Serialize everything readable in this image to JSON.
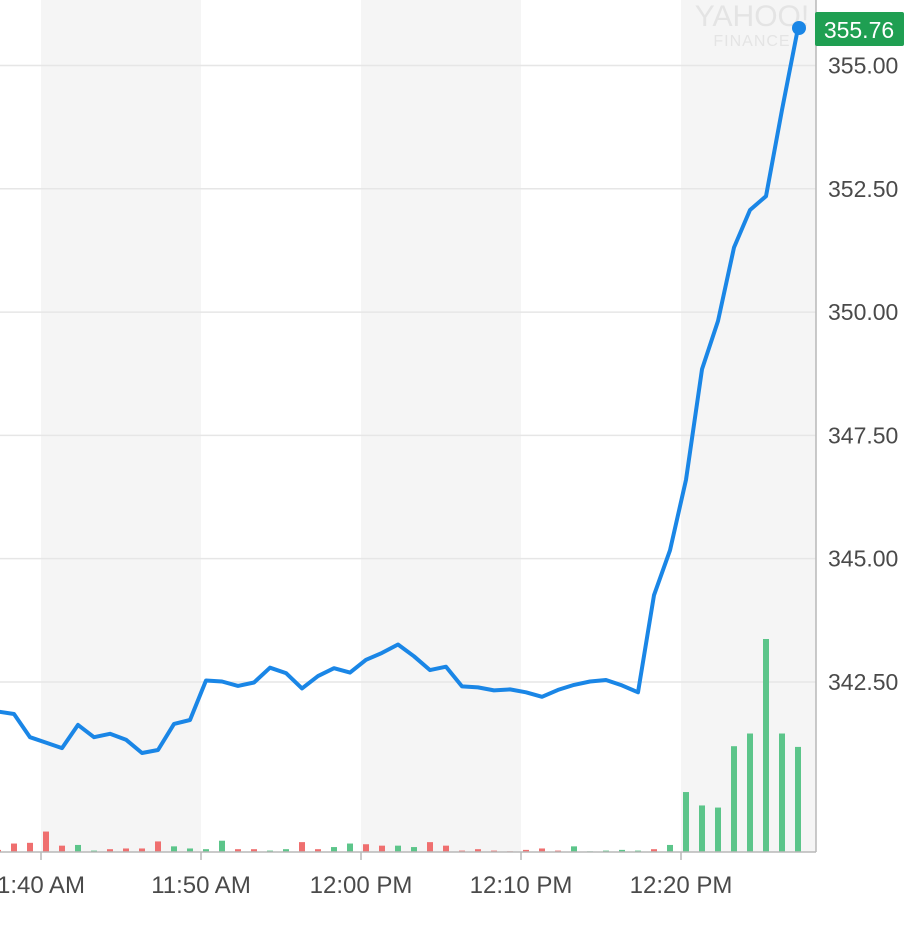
{
  "watermark": {
    "line1": "YAHOO!",
    "line2": "FINANCE"
  },
  "colors": {
    "line": "#1a86e6",
    "last_label_bg": "#1f9f52",
    "volume_up": "#5cc58a",
    "volume_down": "#ef6f6f",
    "band": "#f5f5f5",
    "grid": "#e6e6e6",
    "axis": "#b8b8b8"
  },
  "chart_data": {
    "type": "line",
    "title": "",
    "xlabel": "",
    "ylabel": "",
    "x_axis": {
      "ticks": [
        "1:40 AM",
        "11:50 AM",
        "12:00 PM",
        "12:10 PM",
        "12:20 PM"
      ]
    },
    "y_axis": {
      "ticks": [
        "342.50",
        "345.00",
        "347.50",
        "350.00",
        "352.50",
        "355.00"
      ],
      "range": [
        340.9,
        356.3
      ]
    },
    "grid": true,
    "last_price_label": "355.76",
    "series": [
      {
        "values": [
          341.9,
          341.85,
          341.38,
          341.27,
          341.16,
          341.63,
          341.38,
          341.45,
          341.33,
          341.06,
          341.12,
          341.65,
          341.73,
          342.53,
          342.51,
          342.42,
          342.49,
          342.79,
          342.68,
          342.37,
          342.62,
          342.78,
          342.69,
          342.95,
          343.09,
          343.26,
          343.02,
          342.74,
          342.81,
          342.41,
          342.39,
          342.33,
          342.35,
          342.29,
          342.2,
          342.34,
          342.44,
          342.51,
          342.54,
          342.43,
          342.29,
          344.26,
          345.17,
          346.6,
          348.84,
          349.82,
          351.31,
          352.07,
          352.35,
          354.1,
          355.76
        ]
      }
    ],
    "volume": {
      "values": [
        0.3,
        1.2,
        1.3,
        2.9,
        0.9,
        1.0,
        0.2,
        0.4,
        0.5,
        0.5,
        1.5,
        0.8,
        0.5,
        0.4,
        1.6,
        0.4,
        0.4,
        0.2,
        0.4,
        1.4,
        0.4,
        0.7,
        1.2,
        1.1,
        0.9,
        0.9,
        0.7,
        1.4,
        0.9,
        0.2,
        0.4,
        0.2,
        0.1,
        0.3,
        0.5,
        0.2,
        0.8,
        0.1,
        0.2,
        0.3,
        0.2,
        0.4,
        1.0,
        8.5,
        6.6,
        6.3,
        15.0,
        16.8,
        30.2,
        16.8,
        14.9
      ],
      "direction": [
        "d",
        "d",
        "d",
        "d",
        "d",
        "u",
        "u",
        "d",
        "d",
        "d",
        "d",
        "u",
        "u",
        "u",
        "u",
        "d",
        "d",
        "u",
        "u",
        "d",
        "d",
        "u",
        "u",
        "d",
        "d",
        "u",
        "u",
        "d",
        "d",
        "d",
        "d",
        "d",
        "d",
        "d",
        "d",
        "d",
        "u",
        "u",
        "u",
        "u",
        "u",
        "d",
        "u",
        "u",
        "u",
        "u",
        "u",
        "u",
        "u",
        "u",
        "u"
      ]
    }
  }
}
